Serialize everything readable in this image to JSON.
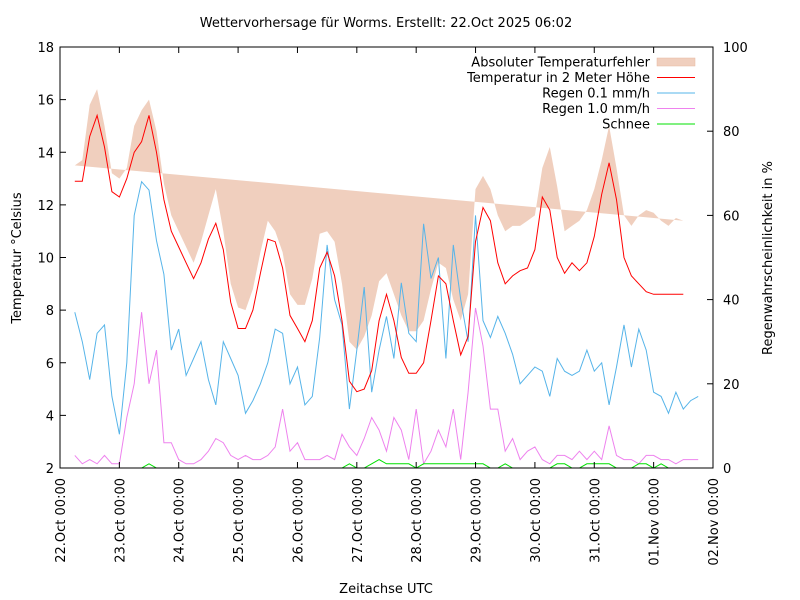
{
  "chart_data": {
    "type": "line",
    "title": "Wettervorhersage für Worms. Erstellt: 22.Oct 2025 06:02",
    "xlabel": "Zeitachse UTC",
    "ylabel": "Temperatur °Celsius",
    "y2label": "Regenwahrscheinlichkeit in %",
    "ylim": [
      2,
      18
    ],
    "y2lim": [
      0,
      100
    ],
    "yticks": [
      "2",
      "4",
      "6",
      "8",
      "10",
      "12",
      "14",
      "16",
      "18"
    ],
    "y2ticks": [
      "0",
      "20",
      "40",
      "60",
      "80",
      "100"
    ],
    "xlim_hours": [
      0,
      264
    ],
    "xticks": [
      {
        "label": "22.Oct 00:00",
        "hour": 0
      },
      {
        "label": "23.Oct 00:00",
        "hour": 24
      },
      {
        "label": "24.Oct 00:00",
        "hour": 48
      },
      {
        "label": "25.Oct 00:00",
        "hour": 72
      },
      {
        "label": "26.Oct 00:00",
        "hour": 96
      },
      {
        "label": "27.Oct 00:00",
        "hour": 120
      },
      {
        "label": "28.Oct 00:00",
        "hour": 144
      },
      {
        "label": "29.Oct 00:00",
        "hour": 168
      },
      {
        "label": "30.Oct 00:00",
        "hour": 192
      },
      {
        "label": "31.Oct 00:00",
        "hour": 216
      },
      {
        "label": "01.Nov 00:00",
        "hour": 240
      },
      {
        "label": "02.Nov 00:00",
        "hour": 264
      }
    ],
    "grid": false,
    "legend_position": "top-right",
    "x_hours": [
      6,
      9,
      12,
      15,
      18,
      21,
      24,
      27,
      30,
      33,
      36,
      39,
      42,
      45,
      48,
      51,
      54,
      57,
      60,
      63,
      66,
      69,
      72,
      75,
      78,
      81,
      84,
      87,
      90,
      93,
      96,
      99,
      102,
      105,
      108,
      111,
      114,
      117,
      120,
      123,
      126,
      129,
      132,
      135,
      138,
      141,
      144,
      147,
      150,
      153,
      156,
      159,
      162,
      165,
      168,
      171,
      174,
      177,
      180,
      183,
      186,
      189,
      192,
      195,
      198,
      201,
      204,
      207,
      210,
      213,
      216,
      219,
      222,
      225,
      228,
      231,
      234,
      237,
      240,
      243,
      246,
      249,
      252,
      255,
      258
    ],
    "series": [
      {
        "name": "Absoluter Temperaturfehler",
        "kind": "band",
        "color": "#f0cfbe",
        "lower": [
          12.3,
          12.5,
          13.8,
          14.6,
          13.6,
          11.4,
          10.6,
          11.0,
          12.8,
          13.6,
          14.2,
          12.8,
          11.2,
          9.8,
          9.3,
          8.7,
          8.1,
          8.6,
          9.4,
          10.2,
          9.2,
          7.6,
          6.7,
          6.7,
          7.0,
          8.4,
          9.9,
          9.6,
          8.2,
          6.8,
          6.5,
          6.2,
          6.8,
          8.6,
          9.4,
          8.2,
          6.2,
          4.4,
          3.4,
          3.4,
          4.0,
          6.4,
          7.6,
          6.6,
          5.0,
          3.8,
          3.8,
          4.4,
          6.0,
          8.2,
          8.3,
          6.4,
          4.6,
          5.2,
          8.6,
          10.1,
          10.2,
          7.8,
          6.6,
          6.4,
          6.3,
          6.8,
          7.6,
          9.5,
          8.4,
          7.0,
          5.8,
          6.0,
          6.2,
          7.2,
          8.6,
          7.2,
          6.2,
          5.8,
          6.6,
          7.8,
          10.2,
          11.7,
          10.0,
          8.6,
          7.6,
          6.8,
          6.2,
          5.9,
          5.8
        ],
        "upper": [
          13.5,
          13.7,
          15.8,
          16.4,
          15.0,
          13.2,
          13.0,
          13.4,
          15.0,
          15.6,
          16.0,
          14.8,
          12.8,
          11.6,
          11.0,
          10.4,
          9.8,
          10.6,
          11.6,
          12.6,
          11.0,
          9.0,
          8.1,
          8.0,
          8.8,
          10.2,
          11.4,
          11.0,
          10.2,
          8.6,
          8.2,
          8.2,
          9.2,
          10.9,
          11.0,
          10.6,
          9.0,
          6.8,
          6.5,
          7.0,
          7.8,
          9.1,
          9.4,
          8.6,
          7.8,
          7.2,
          7.2,
          7.6,
          8.8,
          9.8,
          9.6,
          8.4,
          7.6,
          8.6,
          12.6,
          13.1,
          12.6,
          11.6,
          11.0,
          11.2,
          11.2,
          11.4,
          11.6,
          13.4,
          14.2,
          12.7,
          11.0,
          11.2,
          11.4,
          11.8,
          12.6,
          13.7,
          15.0,
          13.4,
          11.6,
          11.2,
          11.6,
          11.8,
          11.7,
          11.4,
          11.2,
          11.5,
          11.4
        ],
        "values": []
      },
      {
        "name": "Temperatur in 2 Meter Höhe",
        "kind": "line",
        "axis": "y",
        "color": "#ff0000",
        "values": [
          12.9,
          12.9,
          14.6,
          15.4,
          14.2,
          12.5,
          12.3,
          13.0,
          14.0,
          14.4,
          15.4,
          14.0,
          12.2,
          11.0,
          10.4,
          9.8,
          9.2,
          9.8,
          10.7,
          11.3,
          10.3,
          8.3,
          7.3,
          7.3,
          8.0,
          9.4,
          10.7,
          10.6,
          9.6,
          7.8,
          7.3,
          6.8,
          7.6,
          9.6,
          10.2,
          9.3,
          7.6,
          5.3,
          4.9,
          5.0,
          5.7,
          7.6,
          8.6,
          7.6,
          6.2,
          5.6,
          5.6,
          6.0,
          7.6,
          9.3,
          9.0,
          7.6,
          6.3,
          7.0,
          10.6,
          11.9,
          11.4,
          9.8,
          9.0,
          9.3,
          9.5,
          9.6,
          10.3,
          12.3,
          11.8,
          10.0,
          9.4,
          9.8,
          9.5,
          9.8,
          10.8,
          12.4,
          13.6,
          12.2,
          10.0,
          9.3,
          9.0,
          8.7,
          8.6,
          8.6,
          8.6,
          8.6,
          8.6
        ]
      },
      {
        "name": "Regen 0.1 mm/h",
        "kind": "line",
        "axis": "y2",
        "color": "#56b4e9",
        "values": [
          37,
          30,
          21,
          32,
          34,
          17,
          8,
          25,
          60,
          68,
          66,
          54,
          46,
          28,
          33,
          22,
          26,
          30,
          21,
          15,
          30,
          26,
          22,
          13,
          16,
          20,
          25,
          33,
          32,
          20,
          24,
          15,
          17,
          31,
          53,
          40,
          34,
          14,
          28,
          43,
          18,
          28,
          36,
          26,
          44,
          32,
          30,
          58,
          45,
          50,
          26,
          53,
          40,
          30,
          60,
          35,
          31,
          36,
          32,
          27,
          20,
          22,
          24,
          23,
          17,
          26,
          23,
          22,
          23,
          28,
          23,
          25,
          15,
          24,
          34,
          24,
          33,
          28,
          18,
          17,
          13,
          18,
          14,
          16,
          17
        ]
      },
      {
        "name": "Regen 1.0 mm/h",
        "kind": "line",
        "axis": "y2",
        "color": "#ee82ee",
        "values": [
          3,
          1,
          2,
          1,
          3,
          1,
          1,
          12,
          20,
          37,
          20,
          28,
          6,
          6,
          2,
          1,
          1,
          2,
          4,
          7,
          6,
          3,
          2,
          3,
          2,
          2,
          3,
          5,
          14,
          4,
          6,
          2,
          2,
          2,
          3,
          2,
          8,
          5,
          3,
          7,
          12,
          9,
          4,
          12,
          9,
          2,
          14,
          1,
          4,
          9,
          5,
          14,
          2,
          18,
          38,
          29,
          14,
          14,
          4,
          7,
          2,
          4,
          5,
          2,
          1,
          3,
          3,
          2,
          4,
          2,
          4,
          2,
          10,
          3,
          2,
          2,
          1,
          3,
          3,
          2,
          2,
          1,
          2,
          2,
          2
        ]
      },
      {
        "name": "Schnee",
        "kind": "line",
        "axis": "y2",
        "color": "#00e000",
        "values": [
          0,
          0,
          0,
          0,
          0,
          0,
          0,
          0,
          0,
          0,
          1,
          0,
          0,
          0,
          0,
          0,
          0,
          0,
          0,
          0,
          0,
          0,
          0,
          0,
          0,
          0,
          0,
          0,
          0,
          0,
          0,
          0,
          0,
          0,
          0,
          0,
          0,
          1,
          0,
          0,
          1,
          2,
          1,
          1,
          1,
          1,
          0,
          1,
          1,
          1,
          1,
          1,
          1,
          1,
          1,
          1,
          0,
          0,
          1,
          0,
          0,
          0,
          0,
          0,
          0,
          1,
          1,
          0,
          0,
          1,
          1,
          1,
          1,
          0,
          0,
          0,
          1,
          1,
          0,
          1,
          0,
          0,
          0,
          0,
          0
        ]
      }
    ]
  }
}
